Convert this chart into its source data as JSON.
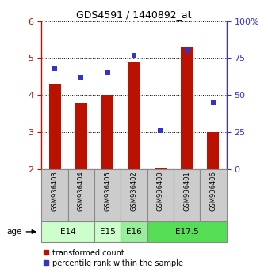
{
  "title": "GDS4591 / 1440892_at",
  "samples": [
    "GSM936403",
    "GSM936404",
    "GSM936405",
    "GSM936402",
    "GSM936400",
    "GSM936401",
    "GSM936406"
  ],
  "red_values": [
    4.3,
    3.8,
    4.0,
    4.9,
    2.05,
    5.3,
    3.0
  ],
  "blue_values": [
    68,
    62,
    65,
    77,
    26,
    80,
    45
  ],
  "age_groups": [
    {
      "label": "E14",
      "start": 0,
      "end": 2,
      "color": "#ccffcc"
    },
    {
      "label": "E15",
      "start": 2,
      "end": 3,
      "color": "#ccffcc"
    },
    {
      "label": "E16",
      "start": 3,
      "end": 4,
      "color": "#99ee99"
    },
    {
      "label": "E17.5",
      "start": 4,
      "end": 7,
      "color": "#55dd55"
    }
  ],
  "ylim_left": [
    2,
    6
  ],
  "ylim_right": [
    0,
    100
  ],
  "yticks_left": [
    2,
    3,
    4,
    5,
    6
  ],
  "yticks_right": [
    0,
    25,
    50,
    75,
    100
  ],
  "yticklabels_right": [
    "0",
    "25",
    "50",
    "75",
    "100%"
  ],
  "red_color": "#bb1100",
  "blue_color": "#3333cc",
  "bar_bottom": 2,
  "legend_red": "transformed count",
  "legend_blue": "percentile rank within the sample",
  "age_label": "age",
  "bar_width": 0.45,
  "sample_box_color": "#cccccc",
  "title_fontsize": 9,
  "tick_fontsize": 8,
  "sample_fontsize": 6,
  "age_fontsize": 7.5,
  "legend_fontsize": 7
}
